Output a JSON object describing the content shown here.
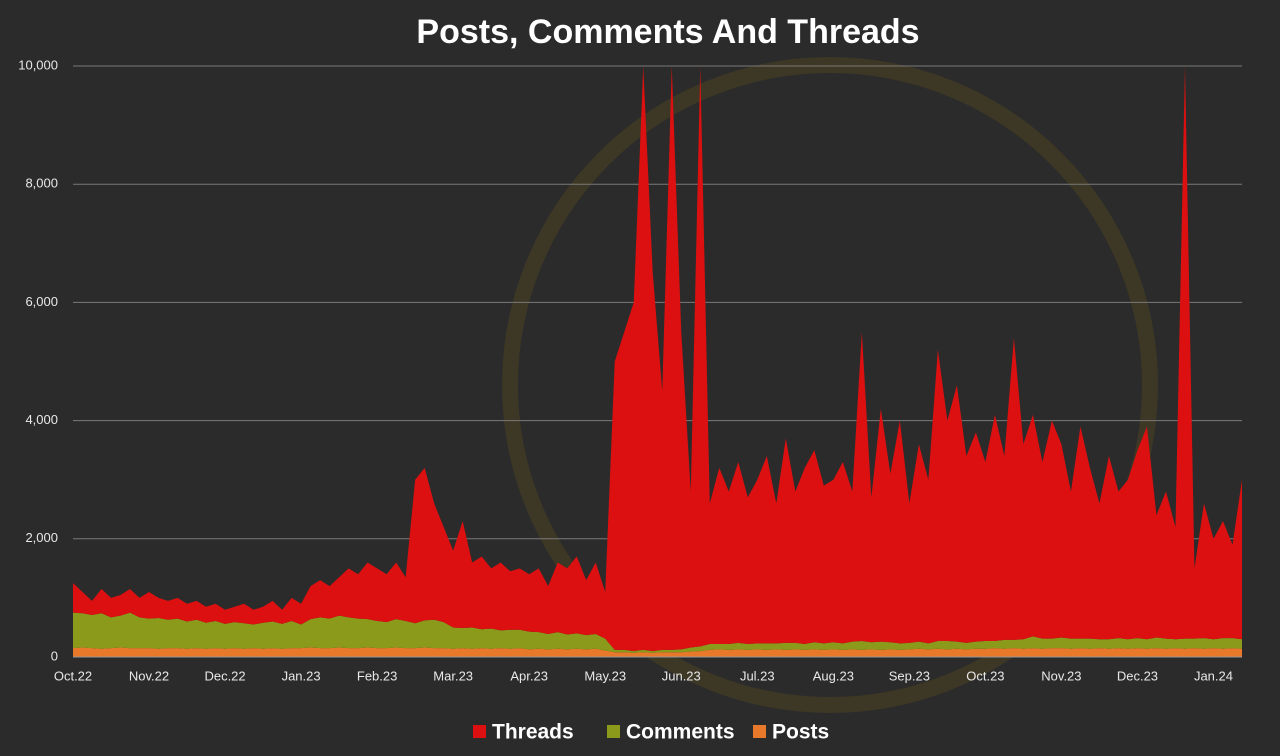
{
  "chart_data": {
    "type": "stacked_area",
    "title": "Posts, Comments And Threads",
    "categories": [
      "Oct.22",
      null,
      null,
      null,
      null,
      null,
      null,
      null,
      "Nov.22",
      null,
      null,
      null,
      null,
      null,
      null,
      null,
      "Dec.22",
      null,
      null,
      null,
      null,
      null,
      null,
      null,
      "Jan.23",
      null,
      null,
      null,
      null,
      null,
      null,
      null,
      "Feb.23",
      null,
      null,
      null,
      null,
      null,
      null,
      null,
      "Mar.23",
      null,
      null,
      null,
      null,
      null,
      null,
      null,
      "Apr.23",
      null,
      null,
      null,
      null,
      null,
      null,
      null,
      "May.23",
      null,
      null,
      null,
      null,
      null,
      null,
      null,
      "Jun.23",
      null,
      null,
      null,
      null,
      null,
      null,
      null,
      "Jul.23",
      null,
      null,
      null,
      null,
      null,
      null,
      null,
      "Aug.23",
      null,
      null,
      null,
      null,
      null,
      null,
      null,
      "Sep.23",
      null,
      null,
      null,
      null,
      null,
      null,
      null,
      "Oct.23",
      null,
      null,
      null,
      null,
      null,
      null,
      null,
      "Nov.23",
      null,
      null,
      null,
      null,
      null,
      null,
      null,
      "Dec.23",
      null,
      null,
      null,
      null,
      null,
      null,
      null,
      "Jan.24",
      null,
      null,
      null
    ],
    "series": [
      {
        "name": "Threads",
        "color": "#dc1010",
        "values": [
          500,
          360,
          240,
          410,
          330,
          350,
          400,
          330,
          450,
          340,
          320,
          350,
          300,
          320,
          270,
          290,
          240,
          260,
          330,
          250,
          270,
          350,
          240,
          390,
          350,
          560,
          630,
          550,
          650,
          830,
          750,
          960,
          890,
          810,
          960,
          740,
          2430,
          2580,
          1970,
          1610,
          1300,
          1810,
          1100,
          1230,
          1020,
          1150,
          990,
          1040,
          970,
          1080,
          810,
          1180,
          1120,
          1300,
          930,
          1210,
          790,
          4880,
          5380,
          5900,
          9880,
          6400,
          4380,
          9880,
          5370,
          2640,
          9820,
          2380,
          2980,
          2580,
          3060,
          2480,
          2770,
          3170,
          2370,
          3460,
          2560,
          2980,
          3250,
          2670,
          2750,
          3070,
          2540,
          5230,
          2450,
          3940,
          2850,
          3770,
          2360,
          3340,
          2770,
          4930,
          3730,
          4340,
          3160,
          3540,
          3030,
          3830,
          3110,
          5110,
          3300,
          3750,
          2990,
          3690,
          3270,
          2490,
          3590,
          2890,
          2300,
          3100,
          2480,
          2700,
          3180,
          3600,
          2070,
          2490,
          1900,
          9690,
          1190,
          2280,
          1700,
          1980,
          1580,
          2700
        ]
      },
      {
        "name": "Comments",
        "color": "#8c9a1c",
        "values": [
          600,
          580,
          560,
          600,
          520,
          540,
          600,
          520,
          500,
          520,
          480,
          500,
          460,
          480,
          440,
          460,
          420,
          440,
          430,
          400,
          440,
          450,
          420,
          460,
          400,
          480,
          520,
          500,
          540,
          520,
          500,
          480,
          460,
          440,
          480,
          460,
          420,
          460,
          480,
          440,
          360,
          340,
          360,
          320,
          340,
          300,
          320,
          310,
          300,
          280,
          260,
          280,
          250,
          260,
          240,
          250,
          200,
          40,
          40,
          30,
          40,
          30,
          40,
          40,
          50,
          70,
          80,
          100,
          90,
          100,
          110,
          100,
          100,
          110,
          100,
          120,
          110,
          100,
          120,
          110,
          120,
          110,
          130,
          150,
          120,
          140,
          120,
          110,
          110,
          120,
          100,
          130,
          140,
          120,
          110,
          120,
          130,
          120,
          150,
          140,
          160,
          200,
          170,
          160,
          180,
          170,
          160,
          170,
          150,
          160,
          170,
          160,
          170,
          160,
          180,
          170,
          150,
          170,
          160,
          180,
          150,
          180,
          170,
          160
        ]
      },
      {
        "name": "Posts",
        "color": "#e8792a",
        "values": [
          150,
          160,
          150,
          140,
          150,
          160,
          150,
          150,
          150,
          140,
          150,
          150,
          140,
          150,
          140,
          150,
          140,
          150,
          140,
          150,
          140,
          150,
          140,
          150,
          150,
          160,
          150,
          150,
          160,
          150,
          150,
          160,
          150,
          150,
          160,
          150,
          150,
          160,
          150,
          150,
          140,
          150,
          140,
          150,
          140,
          150,
          140,
          150,
          130,
          140,
          130,
          140,
          130,
          140,
          130,
          140,
          110,
          80,
          80,
          70,
          80,
          70,
          80,
          80,
          80,
          90,
          100,
          120,
          130,
          120,
          130,
          120,
          130,
          120,
          130,
          120,
          130,
          120,
          130,
          120,
          130,
          120,
          130,
          120,
          130,
          120,
          130,
          120,
          130,
          140,
          130,
          140,
          130,
          140,
          130,
          140,
          140,
          150,
          140,
          150,
          140,
          150,
          140,
          150,
          150,
          140,
          150,
          140,
          150,
          140,
          150,
          140,
          150,
          140,
          150,
          140,
          150,
          140,
          150,
          140,
          150,
          140,
          150,
          140
        ]
      }
    ],
    "ylim": [
      0,
      10000
    ],
    "yticks": [
      0,
      {
        "value": 2000,
        "label": "2,000"
      },
      {
        "value": 4000,
        "label": "4,000"
      },
      {
        "value": 6000,
        "label": "6,000"
      },
      {
        "value": 8000,
        "label": "8,000"
      },
      {
        "value": 10000,
        "label": "10,000"
      }
    ],
    "grid": true
  }
}
